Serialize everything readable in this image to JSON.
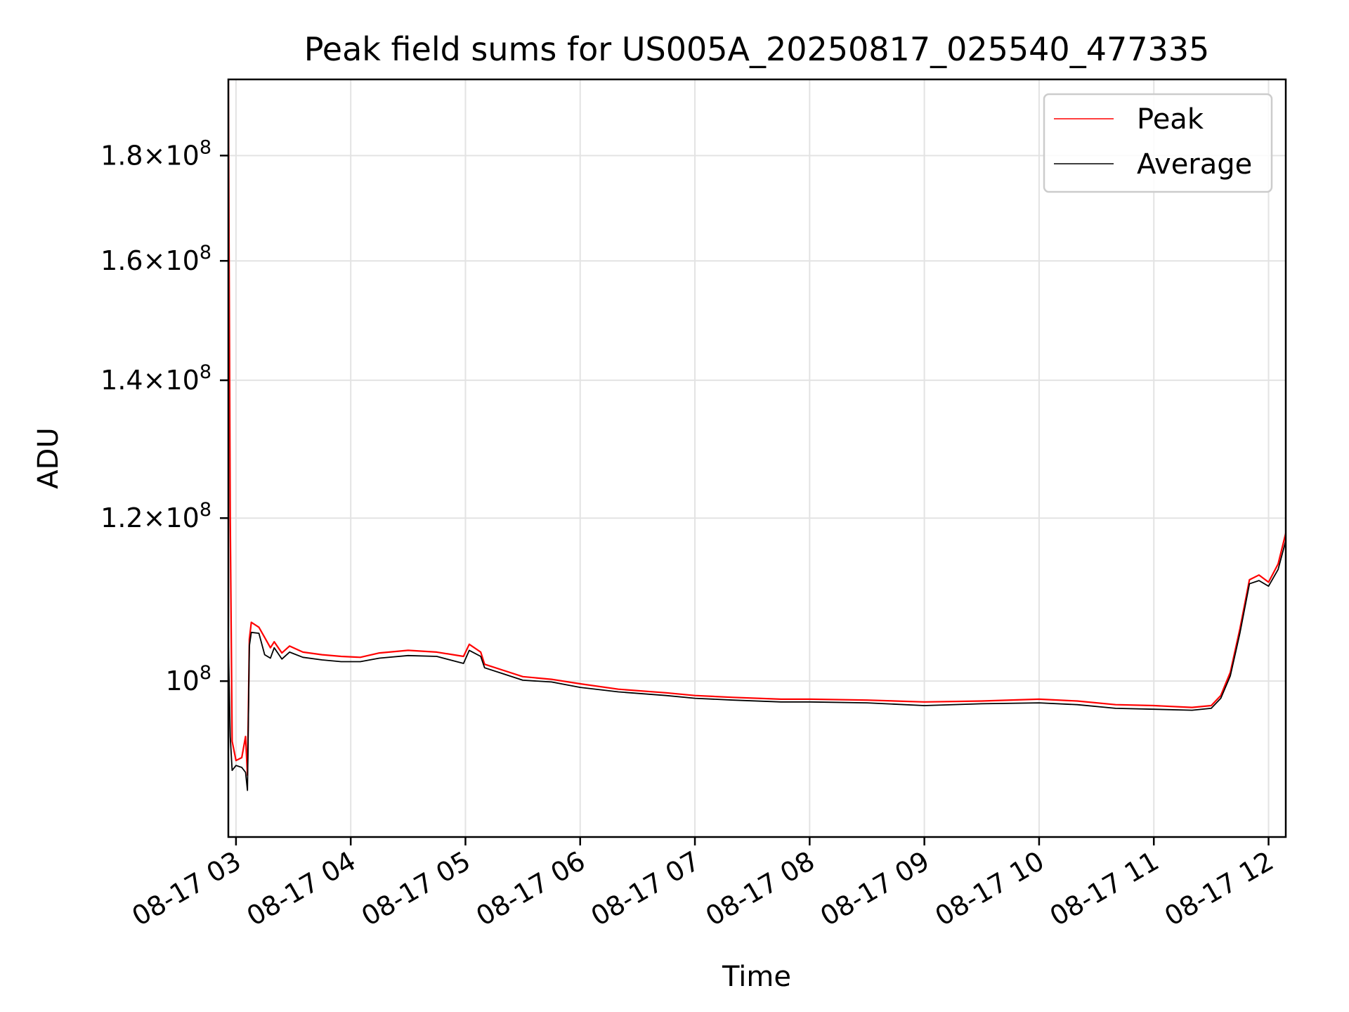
{
  "chart_data": {
    "type": "line",
    "title": "Peak field sums for US005A_20250817_025540_477335",
    "xlabel": "Time",
    "ylabel": "ADU",
    "y_scale": "log",
    "grid": true,
    "legend_position": "top-right",
    "xlim": [
      "2025-08-17 02:56",
      "2025-08-17 12:09"
    ],
    "ylim": [
      84000000,
      196000000
    ],
    "x_ticks": [
      "08-17 03",
      "08-17 04",
      "08-17 05",
      "08-17 06",
      "08-17 07",
      "08-17 08",
      "08-17 09",
      "08-17 10",
      "08-17 11",
      "08-17 12"
    ],
    "y_ticks": [
      {
        "value": 100000000,
        "mantissa": "",
        "exponent": "8"
      },
      {
        "value": 120000000,
        "mantissa": "1.2",
        "exponent": "8"
      },
      {
        "value": 140000000,
        "mantissa": "1.4",
        "exponent": "8"
      },
      {
        "value": 160000000,
        "mantissa": "1.6",
        "exponent": "8"
      },
      {
        "value": 180000000,
        "mantissa": "1.8",
        "exponent": "8"
      }
    ],
    "series": [
      {
        "name": "Peak",
        "color": "#ff0000",
        "points": [
          [
            "2025-08-17 02:56",
            196000000
          ],
          [
            "2025-08-17 02:57",
            120000000
          ],
          [
            "2025-08-17 02:58",
            93500000
          ],
          [
            "2025-08-17 03:00",
            91500000
          ],
          [
            "2025-08-17 03:03",
            91800000
          ],
          [
            "2025-08-17 03:05",
            94000000
          ],
          [
            "2025-08-17 03:06",
            90000000
          ],
          [
            "2025-08-17 03:07",
            104800000
          ],
          [
            "2025-08-17 03:08",
            106800000
          ],
          [
            "2025-08-17 03:12",
            106200000
          ],
          [
            "2025-08-17 03:15",
            105000000
          ],
          [
            "2025-08-17 03:18",
            103800000
          ],
          [
            "2025-08-17 03:20",
            104500000
          ],
          [
            "2025-08-17 03:24",
            103200000
          ],
          [
            "2025-08-17 03:28",
            104000000
          ],
          [
            "2025-08-17 03:35",
            103300000
          ],
          [
            "2025-08-17 03:45",
            103000000
          ],
          [
            "2025-08-17 03:55",
            102800000
          ],
          [
            "2025-08-17 04:05",
            102700000
          ],
          [
            "2025-08-17 04:15",
            103200000
          ],
          [
            "2025-08-17 04:30",
            103500000
          ],
          [
            "2025-08-17 04:45",
            103300000
          ],
          [
            "2025-08-17 04:59",
            102800000
          ],
          [
            "2025-08-17 05:02",
            104200000
          ],
          [
            "2025-08-17 05:08",
            103300000
          ],
          [
            "2025-08-17 05:10",
            101900000
          ],
          [
            "2025-08-17 05:20",
            101200000
          ],
          [
            "2025-08-17 05:30",
            100500000
          ],
          [
            "2025-08-17 05:45",
            100200000
          ],
          [
            "2025-08-17 06:00",
            99700000
          ],
          [
            "2025-08-17 06:20",
            99100000
          ],
          [
            "2025-08-17 06:45",
            98700000
          ],
          [
            "2025-08-17 07:00",
            98400000
          ],
          [
            "2025-08-17 07:20",
            98200000
          ],
          [
            "2025-08-17 07:45",
            98000000
          ],
          [
            "2025-08-17 08:00",
            98000000
          ],
          [
            "2025-08-17 08:30",
            97900000
          ],
          [
            "2025-08-17 09:00",
            97700000
          ],
          [
            "2025-08-17 09:30",
            97800000
          ],
          [
            "2025-08-17 10:00",
            98000000
          ],
          [
            "2025-08-17 10:20",
            97800000
          ],
          [
            "2025-08-17 10:40",
            97400000
          ],
          [
            "2025-08-17 11:00",
            97300000
          ],
          [
            "2025-08-17 11:20",
            97100000
          ],
          [
            "2025-08-17 11:30",
            97300000
          ],
          [
            "2025-08-17 11:35",
            98400000
          ],
          [
            "2025-08-17 11:40",
            101000000
          ],
          [
            "2025-08-17 11:45",
            106000000
          ],
          [
            "2025-08-17 11:50",
            112000000
          ],
          [
            "2025-08-17 11:55",
            112600000
          ],
          [
            "2025-08-17 12:00",
            111700000
          ],
          [
            "2025-08-17 12:05",
            114000000
          ],
          [
            "2025-08-17 12:09",
            118000000
          ]
        ]
      },
      {
        "name": "Average",
        "color": "#000000",
        "points": [
          [
            "2025-08-17 02:56",
            104500000
          ],
          [
            "2025-08-17 02:57",
            94000000
          ],
          [
            "2025-08-17 02:58",
            90500000
          ],
          [
            "2025-08-17 03:00",
            91000000
          ],
          [
            "2025-08-17 03:03",
            90800000
          ],
          [
            "2025-08-17 03:05",
            90300000
          ],
          [
            "2025-08-17 03:06",
            88500000
          ],
          [
            "2025-08-17 03:07",
            104000000
          ],
          [
            "2025-08-17 03:08",
            105600000
          ],
          [
            "2025-08-17 03:12",
            105500000
          ],
          [
            "2025-08-17 03:15",
            103000000
          ],
          [
            "2025-08-17 03:18",
            102600000
          ],
          [
            "2025-08-17 03:20",
            103800000
          ],
          [
            "2025-08-17 03:24",
            102500000
          ],
          [
            "2025-08-17 03:28",
            103300000
          ],
          [
            "2025-08-17 03:35",
            102700000
          ],
          [
            "2025-08-17 03:45",
            102400000
          ],
          [
            "2025-08-17 03:55",
            102200000
          ],
          [
            "2025-08-17 04:05",
            102200000
          ],
          [
            "2025-08-17 04:15",
            102600000
          ],
          [
            "2025-08-17 04:30",
            102900000
          ],
          [
            "2025-08-17 04:45",
            102800000
          ],
          [
            "2025-08-17 04:59",
            102000000
          ],
          [
            "2025-08-17 05:02",
            103500000
          ],
          [
            "2025-08-17 05:08",
            102800000
          ],
          [
            "2025-08-17 05:10",
            101500000
          ],
          [
            "2025-08-17 05:20",
            100800000
          ],
          [
            "2025-08-17 05:30",
            100100000
          ],
          [
            "2025-08-17 05:45",
            99900000
          ],
          [
            "2025-08-17 06:00",
            99300000
          ],
          [
            "2025-08-17 06:20",
            98800000
          ],
          [
            "2025-08-17 06:45",
            98400000
          ],
          [
            "2025-08-17 07:00",
            98100000
          ],
          [
            "2025-08-17 07:20",
            97900000
          ],
          [
            "2025-08-17 07:45",
            97700000
          ],
          [
            "2025-08-17 08:00",
            97700000
          ],
          [
            "2025-08-17 08:30",
            97600000
          ],
          [
            "2025-08-17 09:00",
            97300000
          ],
          [
            "2025-08-17 09:30",
            97500000
          ],
          [
            "2025-08-17 10:00",
            97600000
          ],
          [
            "2025-08-17 10:20",
            97400000
          ],
          [
            "2025-08-17 10:40",
            97000000
          ],
          [
            "2025-08-17 11:00",
            96900000
          ],
          [
            "2025-08-17 11:20",
            96800000
          ],
          [
            "2025-08-17 11:30",
            97000000
          ],
          [
            "2025-08-17 11:35",
            98100000
          ],
          [
            "2025-08-17 11:40",
            100600000
          ],
          [
            "2025-08-17 11:45",
            105500000
          ],
          [
            "2025-08-17 11:50",
            111500000
          ],
          [
            "2025-08-17 11:55",
            111900000
          ],
          [
            "2025-08-17 12:00",
            111200000
          ],
          [
            "2025-08-17 12:05",
            113300000
          ],
          [
            "2025-08-17 12:09",
            117000000
          ]
        ]
      }
    ]
  }
}
